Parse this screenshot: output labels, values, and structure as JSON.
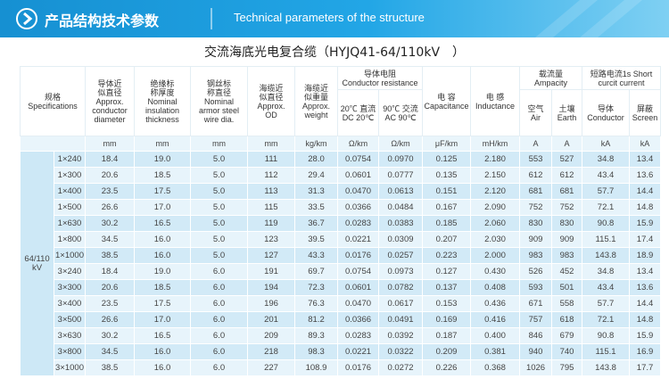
{
  "banner": {
    "title": "产品结构技术参数",
    "subtitle": "Technical parameters of the structure"
  },
  "table": {
    "caption": "交流海底光电复合缆（HYJQ41-64/110kV　）",
    "headers": {
      "spec": [
        "规格",
        "Specifications"
      ],
      "columns": [
        [
          "导体近",
          "似直径",
          "Approx.",
          "conductor",
          "diameter"
        ],
        [
          "绝缘标",
          "称厚度",
          "Nominal",
          "insulation",
          "thickness"
        ],
        [
          "钢丝标",
          "称直径",
          "Nominal",
          "armor steel",
          "wire dia."
        ],
        [
          "海缆近",
          "似直径",
          "Approx.",
          "OD"
        ],
        [
          "海缆近",
          "似重量",
          "Approx.",
          "weight"
        ]
      ],
      "resistance": {
        "label": [
          "导体电阻",
          "Conductor resistance"
        ],
        "sub": [
          [
            "20℃ 直流",
            "DC 20℃"
          ],
          [
            "90℃ 交流",
            "AC 90℃"
          ]
        ]
      },
      "capacitance": [
        "电 容",
        "Capacitance"
      ],
      "inductance": [
        "电 感",
        "Inductance"
      ],
      "ampacity": {
        "label": [
          "载流量",
          "Ampacity"
        ],
        "sub": [
          [
            "空气",
            "Air"
          ],
          [
            "土壤",
            "Earth"
          ]
        ]
      },
      "short_circuit": {
        "label": [
          "短路电流1s Short",
          "curcit current"
        ],
        "sub": [
          [
            "导体",
            "Conductor"
          ],
          [
            "屏蔽",
            "Screen"
          ]
        ]
      }
    },
    "units": [
      "mm",
      "mm",
      "mm",
      "mm",
      "kg/km",
      "Ω/km",
      "Ω/km",
      "μF/km",
      "mH/km",
      "A",
      "A",
      "kA",
      "kA"
    ],
    "group": "64/110 kV",
    "rows": [
      [
        "1×240",
        "18.4",
        "19.0",
        "5.0",
        "111",
        "28.0",
        "0.0754",
        "0.0970",
        "0.125",
        "2.180",
        "553",
        "527",
        "34.8",
        "13.4"
      ],
      [
        "1×300",
        "20.6",
        "18.5",
        "5.0",
        "112",
        "29.4",
        "0.0601",
        "0.0777",
        "0.135",
        "2.150",
        "612",
        "612",
        "43.4",
        "13.6"
      ],
      [
        "1×400",
        "23.5",
        "17.5",
        "5.0",
        "113",
        "31.3",
        "0.0470",
        "0.0613",
        "0.151",
        "2.120",
        "681",
        "681",
        "57.7",
        "14.4"
      ],
      [
        "1×500",
        "26.6",
        "17.0",
        "5.0",
        "115",
        "33.5",
        "0.0366",
        "0.0484",
        "0.167",
        "2.090",
        "752",
        "752",
        "72.1",
        "14.8"
      ],
      [
        "1×630",
        "30.2",
        "16.5",
        "5.0",
        "119",
        "36.7",
        "0.0283",
        "0.0383",
        "0.185",
        "2.060",
        "830",
        "830",
        "90.8",
        "15.9"
      ],
      [
        "1×800",
        "34.5",
        "16.0",
        "5.0",
        "123",
        "39.5",
        "0.0221",
        "0.0309",
        "0.207",
        "2.030",
        "909",
        "909",
        "115.1",
        "17.4"
      ],
      [
        "1×1000",
        "38.5",
        "16.0",
        "5.0",
        "127",
        "43.3",
        "0.0176",
        "0.0257",
        "0.223",
        "2.000",
        "983",
        "983",
        "143.8",
        "18.9"
      ],
      [
        "3×240",
        "18.4",
        "19.0",
        "6.0",
        "191",
        "69.7",
        "0.0754",
        "0.0973",
        "0.127",
        "0.430",
        "526",
        "452",
        "34.8",
        "13.4"
      ],
      [
        "3×300",
        "20.6",
        "18.5",
        "6.0",
        "194",
        "72.3",
        "0.0601",
        "0.0782",
        "0.137",
        "0.408",
        "593",
        "501",
        "43.4",
        "13.6"
      ],
      [
        "3×400",
        "23.5",
        "17.5",
        "6.0",
        "196",
        "76.3",
        "0.0470",
        "0.0617",
        "0.153",
        "0.436",
        "671",
        "558",
        "57.7",
        "14.4"
      ],
      [
        "3×500",
        "26.6",
        "17.0",
        "6.0",
        "201",
        "81.2",
        "0.0366",
        "0.0491",
        "0.169",
        "0.416",
        "757",
        "618",
        "72.1",
        "14.8"
      ],
      [
        "3×630",
        "30.2",
        "16.5",
        "6.0",
        "209",
        "89.3",
        "0.0283",
        "0.0392",
        "0.187",
        "0.400",
        "846",
        "679",
        "90.8",
        "15.9"
      ],
      [
        "3×800",
        "34.5",
        "16.0",
        "6.0",
        "218",
        "98.3",
        "0.0221",
        "0.0322",
        "0.209",
        "0.381",
        "940",
        "740",
        "115.1",
        "16.9"
      ],
      [
        "3×1000",
        "38.5",
        "16.0",
        "6.0",
        "227",
        "108.9",
        "0.0176",
        "0.0272",
        "0.226",
        "0.368",
        "1026",
        "795",
        "143.8",
        "17.7"
      ]
    ]
  }
}
